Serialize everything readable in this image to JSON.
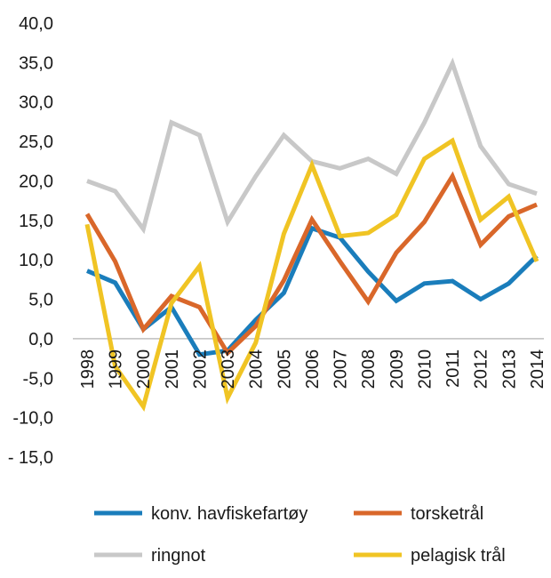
{
  "chart_data": {
    "type": "line",
    "title": "",
    "xlabel": "",
    "ylabel": "",
    "ylim": [
      -15,
      40
    ],
    "ytick_step": 5,
    "yticks": [
      "40,0",
      "35,0",
      "30,0",
      "25,0",
      "20,0",
      "15,0",
      "10,0",
      "5,0",
      "0,0",
      "-5,0",
      "-10,0",
      "- 15,0"
    ],
    "grid": false,
    "legend_position": "bottom",
    "categories": [
      "1998",
      "1999",
      "2000",
      "2001",
      "2002",
      "2003",
      "2004",
      "2005",
      "2006",
      "2007",
      "2008",
      "2009",
      "2010",
      "2011",
      "2012",
      "2013",
      "2014"
    ],
    "series": [
      {
        "name": "konv. havfiskefartøy",
        "color": "#1a7dbb",
        "values": [
          8.6,
          7.1,
          1.2,
          4.0,
          -2.0,
          -1.5,
          2.4,
          5.8,
          14.0,
          12.8,
          8.5,
          4.8,
          7.0,
          7.3,
          5.0,
          7.0,
          10.5
        ]
      },
      {
        "name": "torsketrål",
        "color": "#d9672a",
        "values": [
          15.8,
          9.8,
          1.2,
          5.4,
          4.0,
          -1.8,
          1.6,
          7.4,
          15.1,
          9.8,
          4.7,
          10.9,
          14.8,
          20.6,
          11.9,
          15.5,
          17.0
        ]
      },
      {
        "name": "ringnot",
        "color": "#c8c8c8",
        "values": [
          20.0,
          18.7,
          13.9,
          27.4,
          25.8,
          14.8,
          20.6,
          25.8,
          22.5,
          21.6,
          22.8,
          20.9,
          27.4,
          34.9,
          24.4,
          19.6,
          18.4
        ]
      },
      {
        "name": "pelagisk trål",
        "color": "#f0c424",
        "values": [
          14.5,
          -3.5,
          -8.6,
          4.5,
          9.2,
          -7.5,
          -0.5,
          13.3,
          22.0,
          13.0,
          13.4,
          15.7,
          22.8,
          25.1,
          15.1,
          18.0,
          9.8
        ]
      }
    ]
  }
}
